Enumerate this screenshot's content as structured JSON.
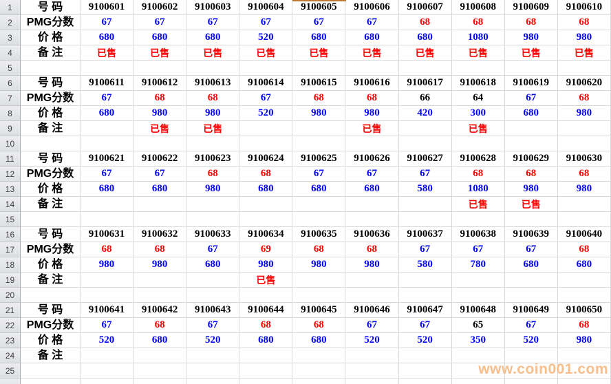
{
  "watermark": "www.coin001.com",
  "row_labels": {
    "number": "号 码",
    "pmg": "PMG分数",
    "price": "价 格",
    "remark": "备 注"
  },
  "gutter_rows": [
    "1",
    "2",
    "3",
    "4",
    "5",
    "6",
    "7",
    "8",
    "9",
    "10",
    "11",
    "12",
    "13",
    "14",
    "15",
    "16",
    "17",
    "18",
    "19",
    "20",
    "21",
    "22",
    "23",
    "24",
    "25",
    ""
  ],
  "colors": {
    "score_blue": "#0000ff",
    "score_red": "#ff0000",
    "score_black": "#000000",
    "price_blue": "#0000ff",
    "sold_red": "#ff0000",
    "watermark_orange": "#f8be8c",
    "selection_border": "#be7a35"
  },
  "blocks": [
    {
      "numbers": [
        "9100601",
        "9100602",
        "9100603",
        "9100604",
        "9100605",
        "9100606",
        "9100607",
        "9100608",
        "9100609",
        "9100610"
      ],
      "pmg": [
        "67",
        "67",
        "67",
        "67",
        "67",
        "67",
        "68",
        "68",
        "68",
        "68"
      ],
      "pmg_colors": [
        "blue",
        "blue",
        "blue",
        "blue",
        "blue",
        "blue",
        "red",
        "red",
        "red",
        "red"
      ],
      "prices": [
        "680",
        "680",
        "680",
        "520",
        "680",
        "680",
        "680",
        "1080",
        "980",
        "980"
      ],
      "remarks": [
        "已售",
        "已售",
        "已售",
        "已售",
        "已售",
        "已售",
        "已售",
        "已售",
        "已售",
        "已售"
      ]
    },
    {
      "numbers": [
        "9100611",
        "9100612",
        "9100613",
        "9100614",
        "9100615",
        "9100616",
        "9100617",
        "9100618",
        "9100619",
        "9100620"
      ],
      "pmg": [
        "67",
        "68",
        "68",
        "67",
        "68",
        "68",
        "66",
        "64",
        "67",
        "68"
      ],
      "pmg_colors": [
        "blue",
        "red",
        "red",
        "blue",
        "red",
        "red",
        "black",
        "black",
        "blue",
        "red"
      ],
      "prices": [
        "680",
        "980",
        "980",
        "520",
        "980",
        "980",
        "420",
        "300",
        "680",
        "980"
      ],
      "remarks": [
        "",
        "已售",
        "已售",
        "",
        "",
        "已售",
        "",
        "已售",
        "",
        ""
      ]
    },
    {
      "numbers": [
        "9100621",
        "9100622",
        "9100623",
        "9100624",
        "9100625",
        "9100626",
        "9100627",
        "9100628",
        "9100629",
        "9100630"
      ],
      "pmg": [
        "67",
        "67",
        "68",
        "68",
        "67",
        "67",
        "67",
        "68",
        "68",
        "68"
      ],
      "pmg_colors": [
        "blue",
        "blue",
        "red",
        "red",
        "blue",
        "blue",
        "blue",
        "red",
        "red",
        "red"
      ],
      "prices": [
        "680",
        "680",
        "980",
        "680",
        "680",
        "680",
        "580",
        "1080",
        "980",
        "980"
      ],
      "remarks": [
        "",
        "",
        "",
        "",
        "",
        "",
        "",
        "已售",
        "已售",
        ""
      ]
    },
    {
      "numbers": [
        "9100631",
        "9100632",
        "9100633",
        "9100634",
        "9100635",
        "9100636",
        "9100637",
        "9100638",
        "9100639",
        "9100640"
      ],
      "pmg": [
        "68",
        "68",
        "67",
        "69",
        "68",
        "68",
        "67",
        "67",
        "67",
        "68"
      ],
      "pmg_colors": [
        "red",
        "red",
        "blue",
        "red",
        "red",
        "red",
        "blue",
        "blue",
        "blue",
        "red"
      ],
      "prices": [
        "980",
        "980",
        "680",
        "980",
        "980",
        "980",
        "580",
        "780",
        "680",
        "680"
      ],
      "remarks": [
        "",
        "",
        "",
        "已售",
        "",
        "",
        "",
        "",
        "",
        ""
      ]
    },
    {
      "numbers": [
        "9100641",
        "9100642",
        "9100643",
        "9100644",
        "9100645",
        "9100646",
        "9100647",
        "9100648",
        "9100649",
        "9100650"
      ],
      "pmg": [
        "67",
        "68",
        "67",
        "68",
        "68",
        "67",
        "67",
        "65",
        "67",
        "68"
      ],
      "pmg_colors": [
        "blue",
        "red",
        "blue",
        "red",
        "red",
        "blue",
        "blue",
        "black",
        "blue",
        "red"
      ],
      "prices": [
        "520",
        "680",
        "520",
        "680",
        "680",
        "520",
        "520",
        "350",
        "520",
        "980"
      ],
      "remarks": [
        "",
        "",
        "",
        "",
        "",
        "",
        "",
        "",
        "",
        ""
      ]
    }
  ]
}
